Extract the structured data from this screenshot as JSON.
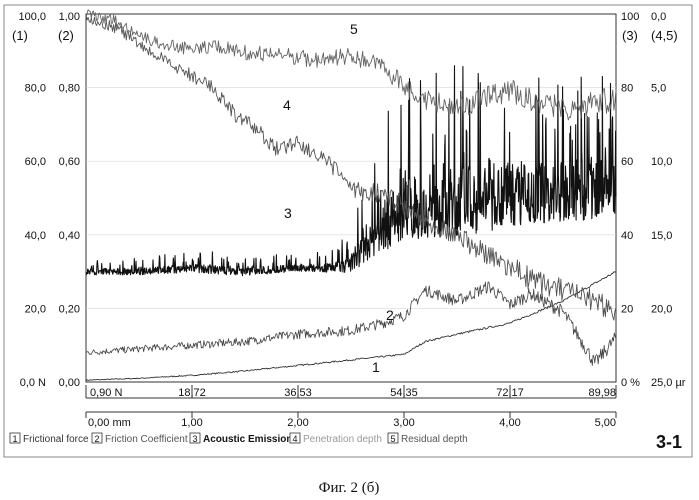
{
  "chart_data": {
    "type": "line",
    "x_axes": {
      "force": {
        "unit": "N",
        "ticks": [
          "0,90 N",
          "18,72",
          "36,53",
          "54,35",
          "72,17",
          "89,98"
        ]
      },
      "distance": {
        "unit": "mm",
        "ticks": [
          "0,00 mm",
          "1,00",
          "2,00",
          "3,00",
          "4,00",
          "5,00"
        ]
      }
    },
    "y_axes": {
      "left1": {
        "label": "(1)",
        "ticks": [
          "100,0",
          "80,0",
          "60,0",
          "40,0",
          "20,0",
          "0,0 N"
        ]
      },
      "left2": {
        "label": "(2)",
        "ticks": [
          "1,00",
          "0,80",
          "0,60",
          "0,40",
          "0,20",
          "0,00"
        ]
      },
      "right3": {
        "label": "(3)",
        "ticks": [
          "100",
          "80",
          "60",
          "40",
          "20",
          "0 %"
        ]
      },
      "right45": {
        "label": "(4,5)",
        "ticks": [
          "0,0",
          "5,0",
          "10,0",
          "15,0",
          "20,0",
          "25,0 µr"
        ]
      }
    },
    "curve_labels": [
      "1",
      "2",
      "3",
      "4",
      "5"
    ],
    "series": [
      {
        "name": "Frictional force",
        "axis": "left1",
        "x_mm": [
          0,
          0.5,
          1,
          1.5,
          2,
          2.5,
          3,
          3.2,
          3.5,
          4,
          4.5,
          5
        ],
        "values": [
          0.5,
          1.0,
          1.8,
          3.0,
          4.5,
          6.0,
          7.5,
          11.0,
          13.0,
          16.0,
          22.0,
          30.0
        ]
      },
      {
        "name": "Friction Coefficient",
        "axis": "left2",
        "x_mm": [
          0,
          0.5,
          1,
          1.5,
          2,
          2.5,
          2.8,
          3,
          3.2,
          3.5,
          3.8,
          4,
          4.2,
          4.5,
          4.7,
          4.8,
          5
        ],
        "values": [
          0.08,
          0.09,
          0.1,
          0.11,
          0.13,
          0.14,
          0.16,
          0.18,
          0.25,
          0.22,
          0.26,
          0.21,
          0.24,
          0.19,
          0.1,
          0.05,
          0.12
        ]
      },
      {
        "name": "Acoustic Emission",
        "axis": "right3",
        "x_mm": [
          0,
          0.5,
          1,
          1.5,
          2,
          2.3,
          2.5,
          2.7,
          3,
          3.5,
          4,
          4.5,
          5
        ],
        "values": [
          30,
          30,
          31,
          30,
          31,
          31,
          32,
          40,
          47,
          49,
          51,
          52,
          53
        ],
        "amplitude": [
          3,
          3,
          4,
          4,
          3,
          4,
          8,
          20,
          30,
          32,
          30,
          28,
          28
        ]
      },
      {
        "name": "Penetration depth",
        "axis": "right45",
        "x_mm": [
          0,
          0.3,
          0.6,
          0.9,
          1.2,
          1.4,
          1.6,
          1.8,
          2,
          2.2,
          2.4,
          2.5,
          2.8,
          3,
          3.2,
          3.5,
          3.8,
          4,
          4.2,
          4.5,
          4.7,
          5
        ],
        "values": [
          0.2,
          1.0,
          2.6,
          3.8,
          5.0,
          6.8,
          7.8,
          9.2,
          8.6,
          9.8,
          10.8,
          12.0,
          12.2,
          13.0,
          14.0,
          15.0,
          16.5,
          17.2,
          18.0,
          18.8,
          19.4,
          20.0
        ]
      },
      {
        "name": "Residual depth",
        "axis": "right45",
        "x_mm": [
          0,
          0.3,
          0.6,
          0.9,
          1.2,
          1.5,
          1.8,
          2,
          2.2,
          2.5,
          2.8,
          3,
          3.2,
          3.5,
          3.8,
          4,
          4.2,
          4.4,
          4.6,
          4.8,
          5
        ],
        "values": [
          0.0,
          0.5,
          1.8,
          2.3,
          2.2,
          2.6,
          2.8,
          2.9,
          3.2,
          2.8,
          3.6,
          4.8,
          5.8,
          6.4,
          5.6,
          5.2,
          5.8,
          6.2,
          6.6,
          5.8,
          6.0
        ]
      }
    ]
  },
  "legend": [
    {
      "num": "1",
      "label": "Frictional force",
      "color": "#333333"
    },
    {
      "num": "2",
      "label": "Friction Coefficient",
      "color": "#555555"
    },
    {
      "num": "3",
      "label": "Acoustic Emission",
      "color": "#111111"
    },
    {
      "num": "4",
      "label": "Penetration depth",
      "color": "#9a9a9a"
    },
    {
      "num": "5",
      "label": "Residual depth",
      "color": "#555555"
    }
  ],
  "badge": "3-1",
  "caption": "Фиг. 2 (б)"
}
